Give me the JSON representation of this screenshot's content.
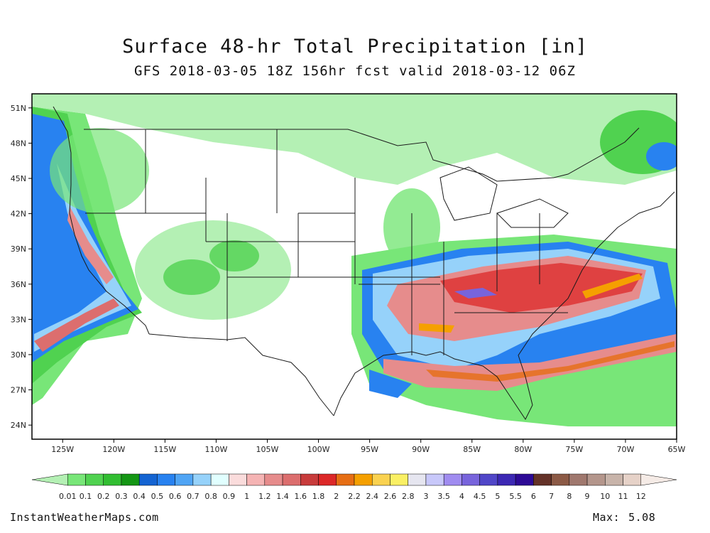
{
  "title": "Surface 48-hr Total Precipitation [in]",
  "subtitle": "GFS 2018-03-05 18Z 156hr fcst valid 2018-03-12 06Z",
  "map": {
    "region": "Continental United States",
    "lon_range": [
      -128,
      -65
    ],
    "lat_range": [
      22.8,
      52.2
    ],
    "lat_ticks": [
      "51N",
      "48N",
      "45N",
      "42N",
      "39N",
      "36N",
      "33N",
      "30N",
      "27N",
      "24N"
    ],
    "lon_ticks": [
      "125W",
      "120W",
      "115W",
      "110W",
      "105W",
      "100W",
      "95W",
      "90W",
      "85W",
      "80W",
      "75W",
      "70W",
      "65W"
    ]
  },
  "colorbar": {
    "values": [
      "0.01",
      "0.1",
      "0.2",
      "0.3",
      "0.4",
      "0.5",
      "0.6",
      "0.7",
      "0.8",
      "0.9",
      "1",
      "1.2",
      "1.4",
      "1.6",
      "1.8",
      "2",
      "2.2",
      "2.4",
      "2.6",
      "2.8",
      "3",
      "3.5",
      "4",
      "4.5",
      "5",
      "5.5",
      "6",
      "7",
      "8",
      "9",
      "10",
      "11",
      "12"
    ],
    "colors": [
      "#b4f0b4",
      "#78e678",
      "#50d250",
      "#32be32",
      "#149614",
      "#1464d2",
      "#2882f0",
      "#50a5f5",
      "#96d2fa",
      "#e1ffff",
      "#fadcdc",
      "#f5b4b4",
      "#e68c8c",
      "#dc6e6e",
      "#c83c3c",
      "#dc2828",
      "#e66e14",
      "#f5a000",
      "#fad250",
      "#faf064",
      "#e6e6f0",
      "#c8c8fa",
      "#a08cf0",
      "#7864dc",
      "#5046c8",
      "#3c28b4",
      "#2d0a96",
      "#643228",
      "#8c5a46",
      "#a0786e",
      "#b4968c",
      "#c8b4aa",
      "#e6d2c8",
      "#f5ebe6"
    ]
  },
  "credit": "InstantWeatherMaps.com",
  "max_label": "Max:",
  "max_value": "5.08"
}
